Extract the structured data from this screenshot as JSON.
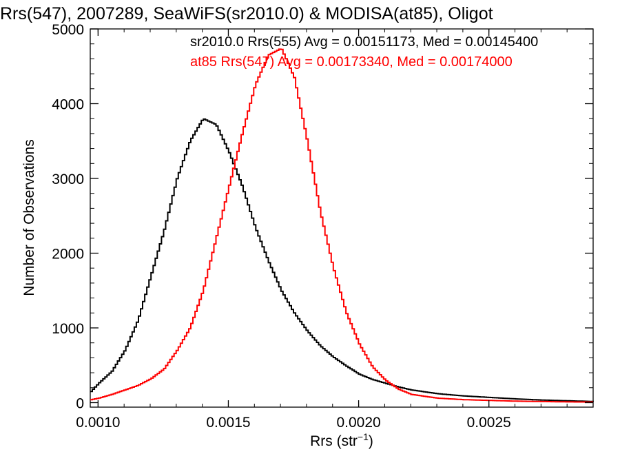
{
  "chart_data": {
    "type": "line",
    "title": "Rrs(547), 2007289, SeaWiFS(sr2010.0) & MODISA(at85), Oligot",
    "xlabel_main": "Rrs (str",
    "xlabel_sup": "−1",
    "xlabel_close": ")",
    "ylabel": "Number of Observations",
    "xlim": [
      0.00097,
      0.0029
    ],
    "ylim": [
      -60,
      5000
    ],
    "x_ticks": [
      0.001,
      0.0015,
      0.002,
      0.0025
    ],
    "x_tick_labels": [
      "0.0010",
      "0.0015",
      "0.0020",
      "0.0025"
    ],
    "y_ticks": [
      0,
      1000,
      2000,
      3000,
      4000,
      5000
    ],
    "y_tick_labels": [
      "0",
      "1000",
      "2000",
      "3000",
      "4000",
      "5000"
    ],
    "grid": false,
    "annotations": [
      {
        "text": "sr2010.0 Rrs(555) Avg = 0.00151173, Med = 0.00145400",
        "color": "#000000"
      },
      {
        "text": "at85 Rrs(547) Avg = 0.00173340, Med = 0.00174000",
        "color": "#ff0000"
      }
    ],
    "series": [
      {
        "color": "#000000",
        "x": [
          0.00097,
          0.001,
          0.00105,
          0.0011,
          0.00115,
          0.0012,
          0.00125,
          0.0013,
          0.00135,
          0.0014,
          0.00145,
          0.0015,
          0.00155,
          0.0016,
          0.00165,
          0.0017,
          0.00175,
          0.0018,
          0.00185,
          0.0019,
          0.00195,
          0.002,
          0.00205,
          0.0021,
          0.00215,
          0.0022,
          0.0023,
          0.0024,
          0.0025,
          0.0026,
          0.0027,
          0.0028,
          0.0029
        ],
        "y": [
          150,
          260,
          420,
          700,
          1100,
          1700,
          2300,
          3000,
          3500,
          3800,
          3720,
          3350,
          2900,
          2350,
          1900,
          1500,
          1200,
          960,
          760,
          610,
          490,
          380,
          310,
          260,
          210,
          170,
          120,
          90,
          70,
          50,
          35,
          25,
          15
        ]
      },
      {
        "color": "#ff0000",
        "x": [
          0.00097,
          0.001,
          0.00105,
          0.0011,
          0.00115,
          0.0012,
          0.00125,
          0.0013,
          0.00135,
          0.0014,
          0.00145,
          0.0015,
          0.00155,
          0.0016,
          0.00165,
          0.0017,
          0.00175,
          0.0018,
          0.00185,
          0.0019,
          0.00195,
          0.002,
          0.00205,
          0.0021,
          0.00215,
          0.0022,
          0.0023,
          0.0024,
          0.0025,
          0.0026,
          0.0027,
          0.0028,
          0.0029
        ],
        "y": [
          40,
          60,
          110,
          170,
          230,
          320,
          450,
          700,
          1000,
          1500,
          2200,
          2900,
          3600,
          4250,
          4650,
          4740,
          4350,
          3500,
          2550,
          1800,
          1200,
          780,
          480,
          300,
          180,
          110,
          60,
          40,
          30,
          20,
          15,
          10,
          8
        ]
      }
    ]
  }
}
